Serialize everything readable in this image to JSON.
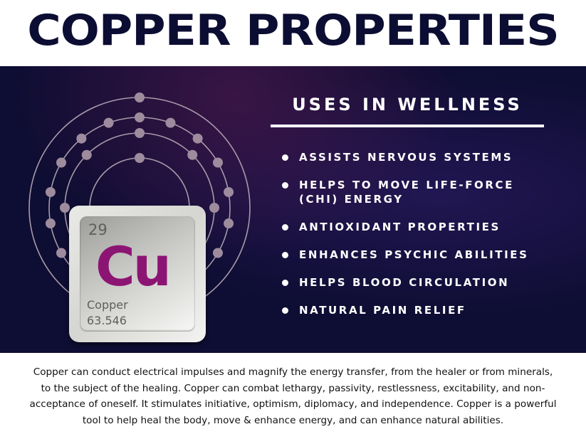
{
  "title": "COPPER PROPERTIES",
  "element": {
    "number": "29",
    "symbol": "Cu",
    "name": "Copper",
    "mass": "63.546",
    "symbol_color": "#8c1573",
    "shells": [
      2,
      8,
      18,
      1
    ]
  },
  "uses": {
    "heading": "USES IN WELLNESS",
    "items": [
      "ASSISTS NERVOUS SYSTEMS",
      "HELPS TO MOVE LIFE-FORCE (CHI) ENERGY",
      "ANTIOXIDANT PROPERTIES",
      "ENHANCES PSYCHIC ABILITIES",
      "HELPS BLOOD CIRCULATION",
      "NATURAL PAIN RELIEF"
    ]
  },
  "description": "Copper can conduct electrical impulses and magnify the energy transfer, from the healer or from minerals, to the subject of the healing. Copper can combat lethargy, passivity, restlessness, excitability, and non-acceptance of oneself. It stimulates initiative, optimism, diplomacy, and independence. Copper is a powerful tool to help heal the body, move & enhance energy, and can enhance natural abilities."
}
